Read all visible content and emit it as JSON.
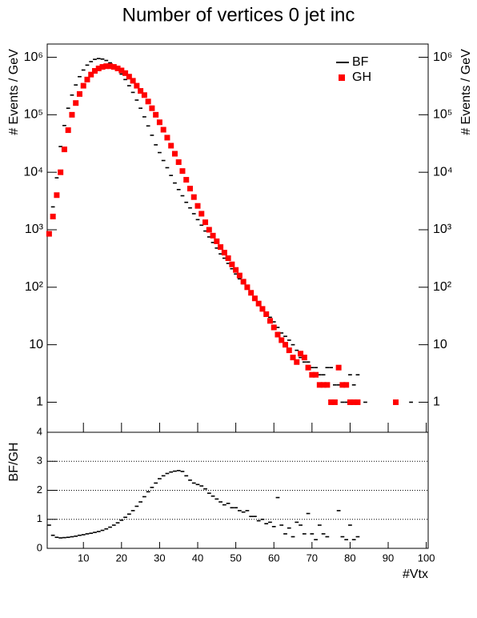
{
  "chart_data": [
    {
      "type": "log-hist",
      "title": "Number of vertices 0 jet inc",
      "y_label": "# Events / GeV",
      "xlim": [
        0.5,
        100.5
      ],
      "ylim": [
        0.3,
        1700000
      ],
      "log_y": true,
      "legend": "top-right",
      "yticks": [
        {
          "value": 1,
          "label": "1"
        },
        {
          "value": 10,
          "label": "10"
        },
        {
          "value": 100,
          "label": "10²"
        },
        {
          "value": 1000,
          "label": "10³"
        },
        {
          "value": 10000,
          "label": "10⁴"
        },
        {
          "value": 100000,
          "label": "10⁵"
        },
        {
          "value": 1000000,
          "label": "10⁶"
        }
      ],
      "series": [
        {
          "name": "BF",
          "color": "#000000",
          "marker": "dash",
          "x": [
            1,
            2,
            3,
            4,
            5,
            6,
            7,
            8,
            9,
            10,
            11,
            12,
            13,
            14,
            15,
            16,
            17,
            18,
            19,
            20,
            21,
            22,
            23,
            24,
            25,
            26,
            27,
            28,
            29,
            30,
            31,
            32,
            33,
            34,
            35,
            36,
            37,
            38,
            39,
            40,
            41,
            42,
            43,
            44,
            45,
            46,
            47,
            48,
            49,
            50,
            51,
            52,
            53,
            54,
            55,
            56,
            57,
            58,
            59,
            60,
            61,
            62,
            63,
            64,
            65,
            66,
            67,
            68,
            69,
            70,
            71,
            72,
            73,
            74,
            75,
            76,
            77,
            78,
            79,
            80,
            81,
            82,
            84,
            96
          ],
          "values": [
            900,
            2500,
            8000,
            28000,
            65000,
            130000,
            220000,
            330000,
            460000,
            600000,
            730000,
            840000,
            920000,
            950000,
            930000,
            880000,
            800000,
            710000,
            610000,
            510000,
            410000,
            320000,
            245000,
            180000,
            130000,
            92000,
            64000,
            44000,
            30000,
            22000,
            16000,
            12000,
            8800,
            6500,
            5000,
            3900,
            3000,
            2400,
            1900,
            1500,
            1200,
            950,
            750,
            600,
            480,
            380,
            320,
            260,
            210,
            170,
            140,
            115,
            95,
            78,
            63,
            52,
            43,
            36,
            30,
            25,
            20,
            16,
            14,
            12,
            10,
            8,
            6,
            5,
            5,
            4,
            4,
            3,
            3,
            4,
            4,
            2,
            2,
            1,
            1,
            3,
            2,
            3,
            1,
            1
          ]
        },
        {
          "name": "GH",
          "color": "#ff0000",
          "marker": "square",
          "x": [
            1,
            2,
            3,
            4,
            5,
            6,
            7,
            8,
            9,
            10,
            11,
            12,
            13,
            14,
            15,
            16,
            17,
            18,
            19,
            20,
            21,
            22,
            23,
            24,
            25,
            26,
            27,
            28,
            29,
            30,
            31,
            32,
            33,
            34,
            35,
            36,
            37,
            38,
            39,
            40,
            41,
            42,
            43,
            44,
            45,
            46,
            47,
            48,
            49,
            50,
            51,
            52,
            53,
            54,
            55,
            56,
            57,
            58,
            59,
            60,
            61,
            62,
            63,
            64,
            65,
            66,
            67,
            68,
            69,
            70,
            71,
            72,
            73,
            74,
            75,
            76,
            77,
            78,
            79,
            80,
            81,
            82,
            92
          ],
          "values": [
            850,
            1700,
            4000,
            10000,
            25000,
            54000,
            100000,
            160000,
            230000,
            320000,
            410000,
            500000,
            580000,
            640000,
            680000,
            700000,
            700000,
            680000,
            640000,
            590000,
            530000,
            460000,
            390000,
            320000,
            260000,
            220000,
            170000,
            130000,
            100000,
            74000,
            55000,
            40000,
            29000,
            21000,
            15000,
            10500,
            7400,
            5200,
            3700,
            2600,
            1900,
            1350,
            1000,
            790,
            630,
            500,
            400,
            320,
            250,
            200,
            160,
            125,
            100,
            80,
            64,
            52,
            42,
            34,
            26,
            20,
            15,
            12,
            10,
            8,
            6,
            5,
            7,
            6,
            4,
            3,
            3,
            2,
            2,
            2,
            1,
            1,
            4,
            2,
            2,
            1,
            1,
            1,
            1
          ]
        }
      ]
    },
    {
      "type": "ratio",
      "y_label": "BF/GH",
      "x_label": "#Vtx",
      "xlim": [
        0.5,
        100.5
      ],
      "ylim": [
        0,
        4
      ],
      "xticks": [
        10,
        20,
        30,
        40,
        50,
        60,
        70,
        80,
        90,
        100
      ],
      "yticks": [
        0,
        1,
        2,
        3,
        4
      ],
      "grid": true,
      "color": "#000000",
      "x": [
        1,
        2,
        3,
        4,
        5,
        6,
        7,
        8,
        9,
        10,
        11,
        12,
        13,
        14,
        15,
        16,
        17,
        18,
        19,
        20,
        21,
        22,
        23,
        24,
        25,
        26,
        27,
        28,
        29,
        30,
        31,
        32,
        33,
        34,
        35,
        36,
        37,
        38,
        39,
        40,
        41,
        42,
        43,
        44,
        45,
        46,
        47,
        48,
        49,
        50,
        51,
        52,
        53,
        54,
        55,
        56,
        57,
        58,
        59,
        60,
        61,
        62,
        63,
        64,
        65,
        66,
        67,
        68,
        69,
        70,
        71,
        72,
        73,
        74,
        77,
        78,
        79,
        80,
        81,
        82
      ],
      "values": [
        0.8,
        0.45,
        0.38,
        0.36,
        0.37,
        0.38,
        0.4,
        0.42,
        0.45,
        0.47,
        0.5,
        0.52,
        0.55,
        0.58,
        0.62,
        0.67,
        0.73,
        0.8,
        0.88,
        0.97,
        1.07,
        1.18,
        1.3,
        1.45,
        1.6,
        1.78,
        1.95,
        2.1,
        2.25,
        2.4,
        2.5,
        2.58,
        2.63,
        2.66,
        2.68,
        2.65,
        2.5,
        2.35,
        2.25,
        2.2,
        2.15,
        2.05,
        1.9,
        1.8,
        1.7,
        1.6,
        1.5,
        1.55,
        1.4,
        1.4,
        1.3,
        1.25,
        1.3,
        1.1,
        1.1,
        0.95,
        1.0,
        0.85,
        0.9,
        0.75,
        1.75,
        0.8,
        0.5,
        0.7,
        0.4,
        0.9,
        0.8,
        0.5,
        1.2,
        0.5,
        0.3,
        0.8,
        0.5,
        0.4,
        1.3,
        0.4,
        0.3,
        0.8,
        0.3,
        0.4
      ]
    }
  ]
}
